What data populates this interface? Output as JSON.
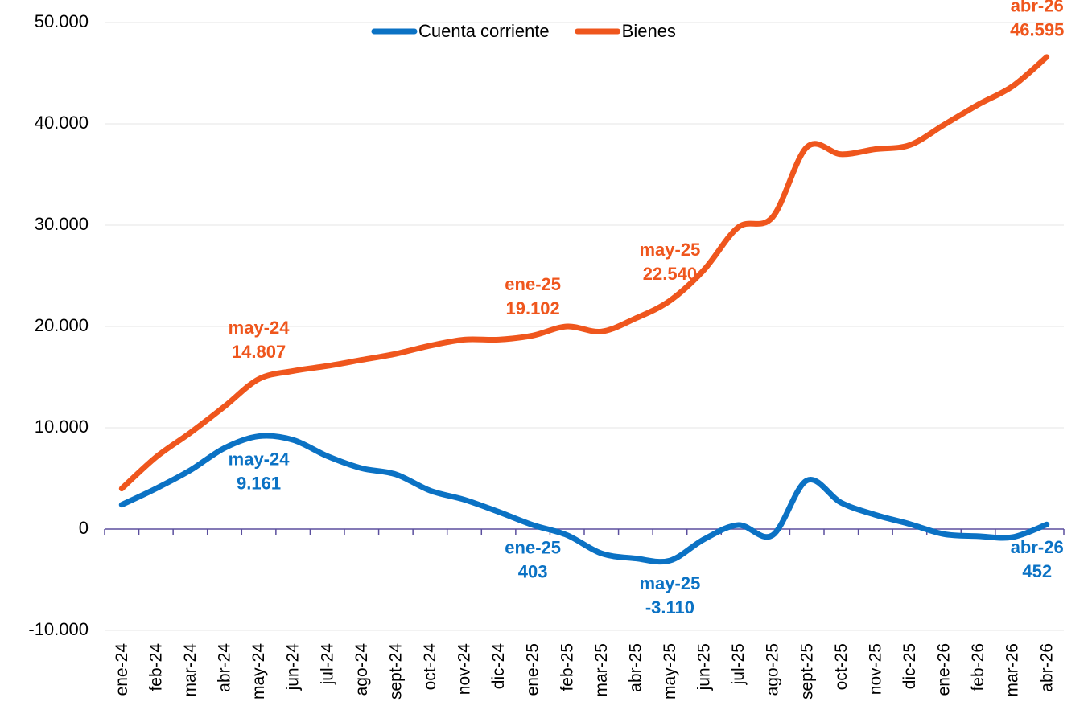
{
  "chart_data": {
    "type": "line",
    "categories": [
      "ene-24",
      "feb-24",
      "mar-24",
      "abr-24",
      "may-24",
      "jun-24",
      "jul-24",
      "ago-24",
      "sept-24",
      "oct-24",
      "nov-24",
      "dic-24",
      "ene-25",
      "feb-25",
      "mar-25",
      "abr-25",
      "may-25",
      "jun-25",
      "jul-25",
      "ago-25",
      "sept-25",
      "oct-25",
      "nov-25",
      "dic-25",
      "ene-26",
      "feb-26",
      "mar-26",
      "abr-26"
    ],
    "series": [
      {
        "name": "Cuenta corriente",
        "color": "#0b72c4",
        "values": [
          2400,
          4000,
          5800,
          8000,
          9161,
          8800,
          7200,
          6000,
          5400,
          3800,
          2900,
          1700,
          403,
          -600,
          -2400,
          -2900,
          -3110,
          -1000,
          400,
          -600,
          4800,
          2600,
          1400,
          500,
          -500,
          -700,
          -800,
          452
        ],
        "value_labels": [
          null,
          null,
          null,
          null,
          "9.161",
          null,
          null,
          null,
          null,
          null,
          null,
          null,
          "403",
          null,
          null,
          null,
          "-3.110",
          null,
          null,
          null,
          null,
          null,
          null,
          null,
          null,
          null,
          null,
          "452"
        ]
      },
      {
        "name": "Bienes",
        "color": "#ef561d",
        "values": [
          4000,
          7100,
          9500,
          12100,
          14807,
          15600,
          16100,
          16700,
          17300,
          18100,
          18700,
          18700,
          19102,
          20000,
          19500,
          20800,
          22540,
          25600,
          29800,
          30800,
          37700,
          37000,
          37500,
          37900,
          39900,
          41900,
          43700,
          46595
        ],
        "value_labels": [
          null,
          null,
          null,
          null,
          "14.807",
          null,
          null,
          null,
          null,
          null,
          null,
          null,
          "19.102",
          null,
          null,
          null,
          "22.540",
          null,
          null,
          null,
          null,
          null,
          null,
          null,
          null,
          null,
          null,
          "46.595"
        ]
      }
    ],
    "ylim": [
      -10000,
      50000
    ],
    "yticks": [
      {
        "value": -10000,
        "label": "-10.000"
      },
      0,
      {
        "value": 10000,
        "label": "10.000"
      },
      {
        "value": 20000,
        "label": "20.000"
      },
      {
        "value": 30000,
        "label": "30.000"
      },
      {
        "value": 40000,
        "label": "40.000"
      },
      {
        "value": 50000,
        "label": "50.000"
      }
    ],
    "grid": true,
    "legend": "top"
  }
}
